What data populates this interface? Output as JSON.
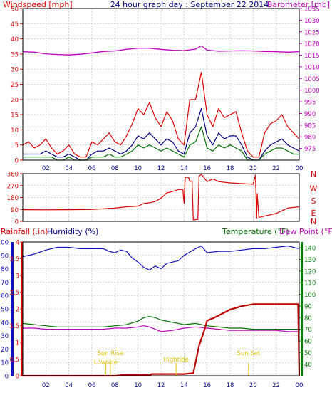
{
  "colors": {
    "frame": "#000000",
    "grid": "#b4b4b4",
    "red": "#e00000",
    "navy": "#000080",
    "green": "#007000",
    "magenta": "#c000c0",
    "blue": "#1010c0",
    "yellow": "#e0c000",
    "dark_red": "#c00000",
    "bar_green": "#008000",
    "axis_green": "#008000"
  },
  "header": {
    "left_label": "Windspeed [mph]",
    "center_title": "24 hour graph day : September 22 2014",
    "right_label": "Barometer [mb]"
  },
  "lower_header": {
    "rainfall_label": "Rainfall (.in)",
    "humidity_label": "Humidity (%)",
    "temperature_label": "Temperature (°F)",
    "dewpoint_label": "Dew Point (°F)"
  },
  "direction_letters": [
    "N",
    "W",
    "S",
    "E",
    "N"
  ],
  "event_labels": {
    "low_tide": "Lowtide",
    "sun_rise": "Sun Rise",
    "high_tide": "Hightide",
    "sun_set": "Sun Set"
  },
  "chart_data": {
    "type": "line",
    "x_tick_labels": [
      "02",
      "04",
      "06",
      "08",
      "10",
      "12",
      "14",
      "16",
      "18",
      "20",
      "22",
      "00"
    ],
    "x_axis_labels_lower": [
      "02",
      "04",
      "06",
      "08",
      "10",
      "12",
      "14",
      "16",
      "18",
      "20",
      "22",
      "00"
    ],
    "panels": [
      {
        "id": "wind",
        "title": "24 hour graph day : September 22 2014",
        "left_axis": {
          "label": "Windspeed [mph]",
          "range": [
            0,
            50
          ],
          "ticks": [
            0,
            5,
            10,
            15,
            20,
            25,
            30,
            35,
            40,
            45,
            50
          ]
        },
        "right_axis": {
          "label": "Barometer [mb]",
          "range": [
            970,
            1035
          ],
          "ticks": [
            975,
            980,
            985,
            990,
            995,
            1000,
            1005,
            1010,
            1015,
            1020,
            1025,
            1030,
            1035
          ]
        },
        "series": [
          {
            "role": "gust",
            "color": "red",
            "x": [
              0,
              0.5,
              1,
              1.5,
              2,
              2.5,
              3,
              3.5,
              4,
              4.5,
              5,
              5.5,
              6,
              6.5,
              7,
              7.5,
              8,
              8.5,
              9,
              9.5,
              10,
              10.5,
              11,
              11.5,
              12,
              12.5,
              13,
              13.5,
              14,
              14.5,
              15,
              15.5,
              16,
              16.5,
              17,
              17.5,
              18,
              18.5,
              19,
              19.5,
              20,
              20.5,
              21,
              21.5,
              22,
              22.5,
              23,
              23.5,
              24
            ],
            "y": [
              5,
              6,
              4,
              5,
              7,
              4,
              2,
              3,
              5,
              2,
              1,
              1,
              6,
              5,
              7,
              9,
              6,
              5,
              8,
              12,
              17,
              15,
              19,
              14,
              11,
              16,
              13,
              7,
              5,
              20,
              20,
              29,
              15,
              11,
              17,
              14,
              15,
              16,
              9,
              3,
              1,
              1,
              9,
              12,
              13,
              15,
              11,
              9,
              7
            ]
          },
          {
            "role": "average",
            "color": "navy",
            "x": [
              0,
              0.5,
              1,
              1.5,
              2,
              2.5,
              3,
              3.5,
              4,
              4.5,
              5,
              5.5,
              6,
              6.5,
              7,
              7.5,
              8,
              8.5,
              9,
              9.5,
              10,
              10.5,
              11,
              11.5,
              12,
              12.5,
              13,
              13.5,
              14,
              14.5,
              15,
              15.5,
              16,
              16.5,
              17,
              17.5,
              18,
              18.5,
              19,
              19.5,
              20,
              20.5,
              21,
              21.5,
              22,
              22.5,
              23,
              23.5,
              24
            ],
            "y": [
              2,
              2,
              2,
              2,
              3,
              2,
              1,
              1,
              2,
              1,
              0,
              0,
              2,
              3,
              3,
              4,
              3,
              2,
              3,
              5,
              8,
              7,
              9,
              7,
              5,
              7,
              6,
              3,
              2,
              9,
              11,
              17,
              8,
              5,
              9,
              7,
              8,
              8,
              5,
              1,
              0,
              0,
              3,
              5,
              6,
              7,
              5,
              4,
              3
            ]
          },
          {
            "role": "speed",
            "color": "green",
            "x": [
              0,
              0.5,
              1,
              1.5,
              2,
              2.5,
              3,
              3.5,
              4,
              4.5,
              5,
              5.5,
              6,
              6.5,
              7,
              7.5,
              8,
              8.5,
              9,
              9.5,
              10,
              10.5,
              11,
              11.5,
              12,
              12.5,
              13,
              13.5,
              14,
              14.5,
              15,
              15.5,
              16,
              16.5,
              17,
              17.5,
              18,
              18.5,
              19,
              19.5,
              20,
              20.5,
              21,
              21.5,
              22,
              22.5,
              23,
              23.5,
              24
            ],
            "y": [
              1,
              1,
              1,
              1,
              1,
              1,
              0,
              0,
              1,
              0,
              0,
              0,
              1,
              1,
              1,
              2,
              1,
              1,
              2,
              3,
              5,
              4,
              5,
              4,
              3,
              4,
              3,
              2,
              1,
              5,
              6,
              11,
              4,
              3,
              5,
              4,
              5,
              4,
              3,
              0,
              0,
              0,
              2,
              3,
              4,
              4,
              3,
              2,
              2
            ]
          },
          {
            "role": "barometer",
            "axis": "right",
            "color": "magenta",
            "x": [
              0,
              1,
              2,
              3,
              4,
              5,
              6,
              7,
              8,
              9,
              10,
              11,
              12,
              13,
              14,
              15,
              15.5,
              16,
              17,
              18,
              19,
              20,
              21,
              22,
              23,
              24
            ],
            "y": [
              1016.5,
              1016.3,
              1015.6,
              1015.3,
              1015.1,
              1015.4,
              1016.0,
              1016.6,
              1016.8,
              1017.5,
              1018.0,
              1018.0,
              1017.5,
              1017.1,
              1017.0,
              1017.6,
              1019.0,
              1017.2,
              1016.7,
              1016.8,
              1016.9,
              1016.8,
              1016.6,
              1016.5,
              1016.3,
              1016.5
            ]
          }
        ]
      },
      {
        "id": "direction",
        "left_axis": {
          "range": [
            0,
            360
          ],
          "ticks": [
            0,
            90,
            180,
            270,
            360
          ]
        },
        "right_axis": {
          "labels": [
            "N",
            "W",
            "S",
            "E",
            "N"
          ]
        },
        "series": [
          {
            "role": "wind_direction",
            "color": "red",
            "x": [
              0,
              2,
              4,
              6,
              7,
              8,
              9,
              10,
              10.5,
              11,
              11.5,
              12,
              12.5,
              13,
              13.5,
              13.9,
              14.0,
              14.1,
              14.4,
              14.5,
              14.7,
              14.8,
              15.2,
              15.3,
              15.5,
              16,
              16.5,
              17,
              18,
              19,
              20,
              20.2,
              20.3,
              20.35,
              20.5,
              21,
              22,
              23,
              24
            ],
            "y": [
              88,
              87,
              88,
              90,
              95,
              100,
              110,
              115,
              135,
              140,
              150,
              175,
              215,
              225,
              240,
              240,
              135,
              335,
              330,
              300,
              305,
              10,
              15,
              340,
              355,
              300,
              320,
              300,
              290,
              285,
              280,
              350,
              20,
              210,
              30,
              40,
              60,
              100,
              110
            ]
          }
        ]
      },
      {
        "id": "lower",
        "left_axis_rainfall": {
          "label": "Rainfall (.in)",
          "range": [
            0,
            4
          ],
          "ticks": [
            0,
            0.5,
            1,
            1.5,
            2,
            2.5,
            3,
            3.5,
            4
          ]
        },
        "left_axis_humidity": {
          "label": "Humidity (%)",
          "range": [
            0,
            100
          ],
          "ticks": [
            0,
            10,
            20,
            30,
            40,
            50,
            60,
            70,
            80,
            90,
            100
          ]
        },
        "right_axis_temperature": {
          "label": "Temperature (°F)",
          "range": [
            30,
            145
          ],
          "ticks": [
            40,
            50,
            60,
            70,
            80,
            90,
            100,
            110,
            120,
            130,
            140
          ]
        },
        "series": [
          {
            "role": "humidity",
            "axis": "humidity",
            "color": "blue",
            "x": [
              0,
              1,
              2,
              3,
              4,
              5,
              6,
              7,
              7.5,
              8,
              8.5,
              9,
              9.5,
              10,
              10.5,
              11,
              11.5,
              12,
              12.5,
              13,
              13.5,
              14,
              15,
              15.5,
              16,
              17,
              18,
              19,
              20,
              21,
              22,
              23,
              24
            ],
            "y": [
              89,
              91,
              94,
              96,
              96,
              95,
              95,
              95,
              93,
              92,
              94,
              93,
              88,
              85,
              81,
              79,
              82,
              80,
              84,
              85,
              86,
              90,
              95,
              97,
              92,
              93,
              93,
              94,
              95,
              95,
              96,
              97,
              95
            ]
          },
          {
            "role": "temperature",
            "axis": "temperature",
            "color": "green",
            "x": [
              0,
              1,
              2,
              3,
              4,
              5,
              6,
              7,
              8,
              9,
              10,
              10.5,
              11,
              11.5,
              12,
              13,
              14,
              15,
              16,
              17,
              18,
              19,
              20,
              21,
              22,
              23,
              24
            ],
            "y": [
              75,
              74,
              73,
              72,
              72,
              72,
              72,
              72,
              73,
              74,
              77,
              80,
              81,
              80,
              78,
              76,
              74,
              75,
              73,
              72,
              71,
              71,
              70,
              70,
              70,
              70,
              70
            ]
          },
          {
            "role": "dew_point",
            "axis": "temperature",
            "color": "magenta",
            "x": [
              0,
              1,
              2,
              3,
              4,
              5,
              6,
              7,
              8,
              9,
              10,
              10.5,
              11,
              11.5,
              12,
              13,
              14,
              15,
              16,
              17,
              18,
              19,
              20,
              21,
              22,
              23,
              24
            ],
            "y": [
              71,
              71,
              70,
              70,
              70,
              70,
              70,
              70,
              71,
              71,
              72,
              73,
              72,
              70,
              68,
              69,
              71,
              72,
              71,
              70,
              69,
              69,
              69,
              69,
              69,
              68,
              68
            ]
          },
          {
            "role": "rainfall",
            "axis": "rainfall",
            "color": "dark_red",
            "x": [
              0,
              4,
              8,
              8.6,
              11,
              11.2,
              14,
              14.8,
              15.0,
              15.3,
              15.6,
              15.8,
              16.0,
              16.5,
              17,
              18,
              19,
              20,
              22,
              23.9,
              24
            ],
            "y": [
              0,
              0,
              0,
              0.02,
              0.02,
              0.05,
              0.05,
              0.08,
              0.4,
              0.9,
              1.2,
              1.4,
              1.65,
              1.72,
              1.8,
              1.98,
              2.08,
              2.14,
              2.14,
              2.14,
              0
            ]
          }
        ]
      }
    ],
    "events": [
      {
        "name": "Lowtide",
        "x": 7.2
      },
      {
        "name": "Sun Rise",
        "x": 7.6
      },
      {
        "name": "Hightide",
        "x": 13.3
      },
      {
        "name": "Sun Set",
        "x": 19.6
      }
    ]
  }
}
